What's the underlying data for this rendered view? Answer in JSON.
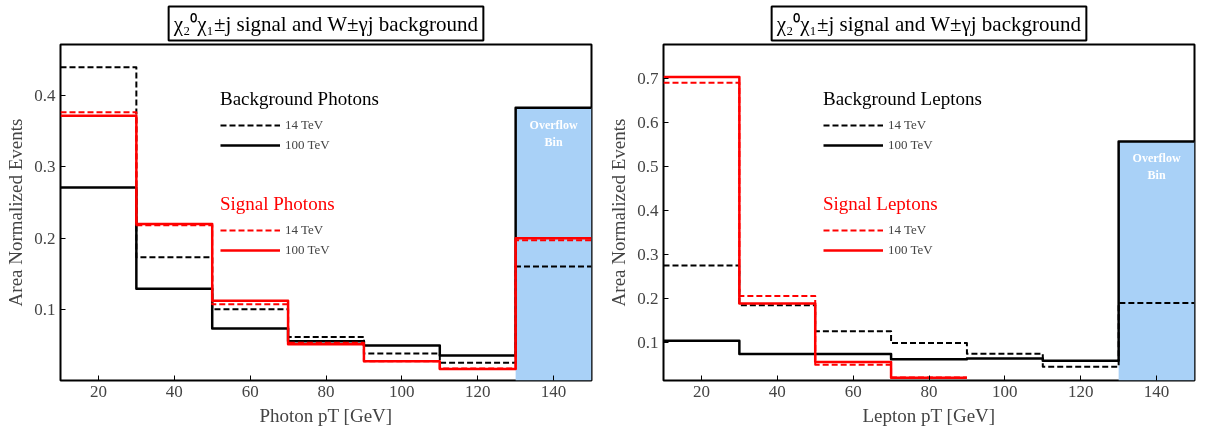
{
  "chart_data": [
    {
      "type": "step",
      "title": "χ₂⁰χ₁±j signal and W±γj background",
      "xlabel": "Photon pT [GeV]",
      "ylabel": "Area Normalized Events",
      "x": [
        10,
        30,
        50,
        70,
        90,
        110,
        130,
        150
      ],
      "series": [
        {
          "name": "14 TeV",
          "color": "#000000",
          "line_style": "dashed",
          "values": [
            0.44,
            0.173,
            0.1,
            0.061,
            0.038,
            0.025,
            0.16,
            0.16
          ]
        },
        {
          "name": "100 TeV",
          "color": "#000000",
          "line_style": "solid",
          "values": [
            0.271,
            0.129,
            0.073,
            0.055,
            0.049,
            0.035,
            0.383,
            0.383
          ]
        },
        {
          "name": "14 TeV",
          "color": "#ff0000",
          "line_style": "dashed",
          "values": [
            0.377,
            0.218,
            0.107,
            0.053,
            0.027,
            0.017,
            0.197,
            0.197
          ]
        },
        {
          "name": "100 TeV",
          "color": "#ff0000",
          "line_style": "solid",
          "values": [
            0.372,
            0.22,
            0.112,
            0.051,
            0.027,
            0.016,
            0.2,
            0.2
          ]
        }
      ],
      "annotations": [
        "Background Photons",
        "Signal Photons"
      ],
      "bands": [
        {
          "axis": "x",
          "from": 130,
          "to": 150,
          "label": "Overflow Bin",
          "color": "#a9d1f7"
        }
      ],
      "xlim": [
        10,
        150
      ],
      "ylim": [
        0,
        0.472
      ],
      "xticks": [
        20,
        40,
        60,
        80,
        100,
        120,
        140
      ],
      "yticks": [
        0.1,
        0.2,
        0.3,
        0.4
      ],
      "grid": false,
      "legend": "top"
    },
    {
      "type": "step",
      "title": "χ₂⁰χ₁±j signal and W±γj background",
      "xlabel": "Lepton pT [GeV]",
      "ylabel": "Area Normalized Events",
      "x": [
        10,
        30,
        50,
        70,
        90,
        110,
        130,
        150
      ],
      "series": [
        {
          "name": "14 TeV",
          "color": "#000000",
          "line_style": "dashed",
          "values": [
            0.275,
            0.185,
            0.126,
            0.099,
            0.075,
            0.045,
            0.19,
            0.19
          ]
        },
        {
          "name": "100 TeV",
          "color": "#000000",
          "line_style": "solid",
          "values": [
            0.104,
            0.074,
            0.074,
            0.062,
            0.064,
            0.059,
            0.557,
            0.557
          ]
        },
        {
          "name": "14 TeV",
          "color": "#ff0000",
          "line_style": "dashed",
          "values": [
            0.69,
            0.206,
            0.05,
            0.021,
            0.021,
            null,
            null,
            null
          ]
        },
        {
          "name": "100 TeV",
          "color": "#ff0000",
          "line_style": "solid",
          "values": [
            0.703,
            0.189,
            0.056,
            0.02,
            0.02,
            null,
            null,
            null
          ]
        }
      ],
      "annotations": [
        "Background Leptons",
        "Signal Leptons"
      ],
      "bands": [
        {
          "axis": "x",
          "from": 130,
          "to": 150,
          "label": "Overflow Bin",
          "color": "#a9d1f7"
        }
      ],
      "xlim": [
        10,
        150
      ],
      "ylim": [
        0.014,
        0.777
      ],
      "xticks": [
        20,
        40,
        60,
        80,
        100,
        120,
        140
      ],
      "yticks": [
        0.1,
        0.2,
        0.3,
        0.4,
        0.5,
        0.6,
        0.7
      ],
      "grid": false,
      "legend": "top"
    }
  ]
}
